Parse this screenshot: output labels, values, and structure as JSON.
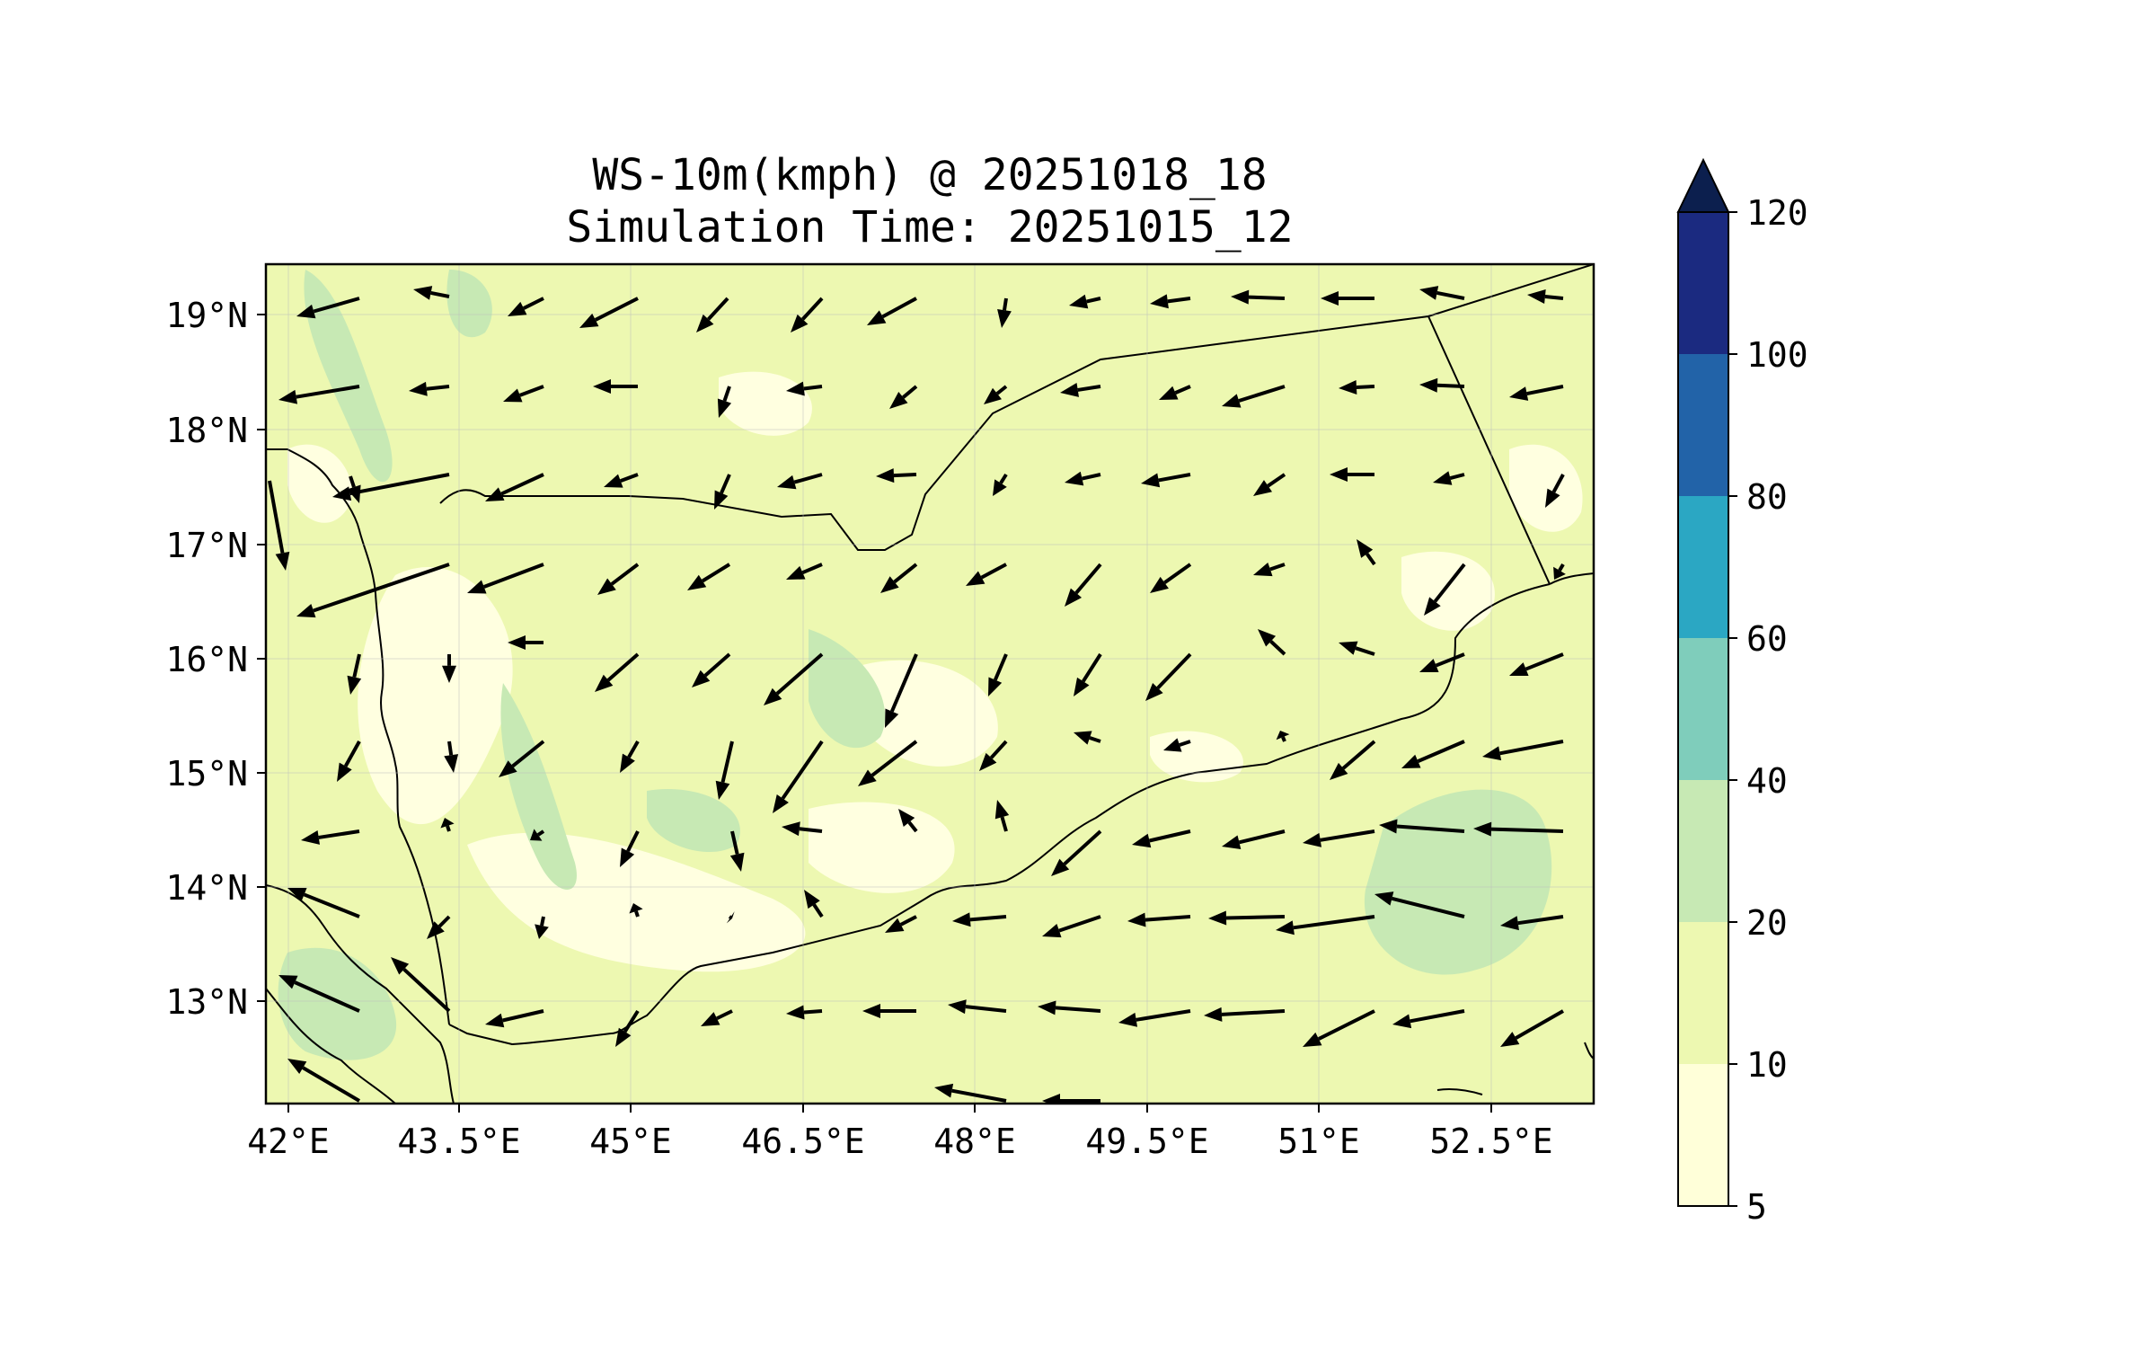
{
  "title": {
    "line1": "WS-10m(kmph) @ 20251018_18",
    "line2": "Simulation Time: 20251015_12"
  },
  "map": {
    "lon_ticks": [
      "42°E",
      "43.5°E",
      "45°E",
      "46.5°E",
      "48°E",
      "49.5°E",
      "51°E",
      "52.5°E"
    ],
    "lat_ticks": [
      "19°N",
      "18°N",
      "17°N",
      "16°N",
      "15°N",
      "14°N",
      "13°N"
    ],
    "extent_lon": [
      42,
      53.8
    ],
    "extent_lat": [
      12.1,
      19.4
    ]
  },
  "colorbar": {
    "ticks": [
      "120",
      "100",
      "80",
      "60",
      "40",
      "20",
      "10",
      "5"
    ],
    "levels": [
      {
        "from": 5,
        "to": 10,
        "color": "#ffffd9"
      },
      {
        "from": 10,
        "to": 20,
        "color": "#edf8b1"
      },
      {
        "from": 20,
        "to": 40,
        "color": "#c7e9b4"
      },
      {
        "from": 40,
        "to": 60,
        "color": "#7fcdbb"
      },
      {
        "from": 60,
        "to": 80,
        "color": "#2ba7c3"
      },
      {
        "from": 80,
        "to": 100,
        "color": "#2263a8"
      },
      {
        "from": 100,
        "to": 120,
        "color": "#1b2a80"
      },
      {
        "from": 120,
        "to": null,
        "color": "#0c1f4e"
      }
    ]
  },
  "colors": {
    "background_field": "#edf8b1",
    "low_wind": "#ffffe0",
    "high_wind": "#c7e9b4",
    "arrow": "#000000"
  }
}
